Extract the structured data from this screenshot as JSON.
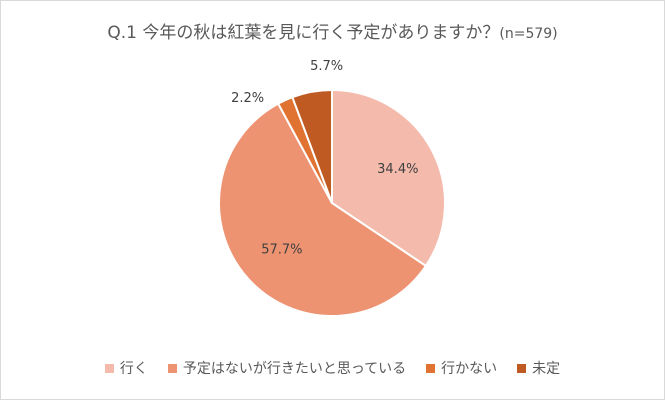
{
  "chart_data": {
    "type": "pie",
    "title": "Q.1 今年の秋は紅葉を見に行く予定がありますか？",
    "subtitle": "(n=579)",
    "categories": [
      "行く",
      "予定はないが行きたいと思っている",
      "行かない",
      "未定"
    ],
    "values": [
      34.4,
      57.7,
      2.2,
      5.7
    ],
    "data_labels": [
      "34.4%",
      "57.7%",
      "2.2%",
      "5.7%"
    ],
    "colors": [
      "#f4bbad",
      "#ee9372",
      "#e07232",
      "#bf5a22"
    ],
    "start_angle": "12 o'clock",
    "direction": "clockwise",
    "legend_position": "bottom"
  }
}
